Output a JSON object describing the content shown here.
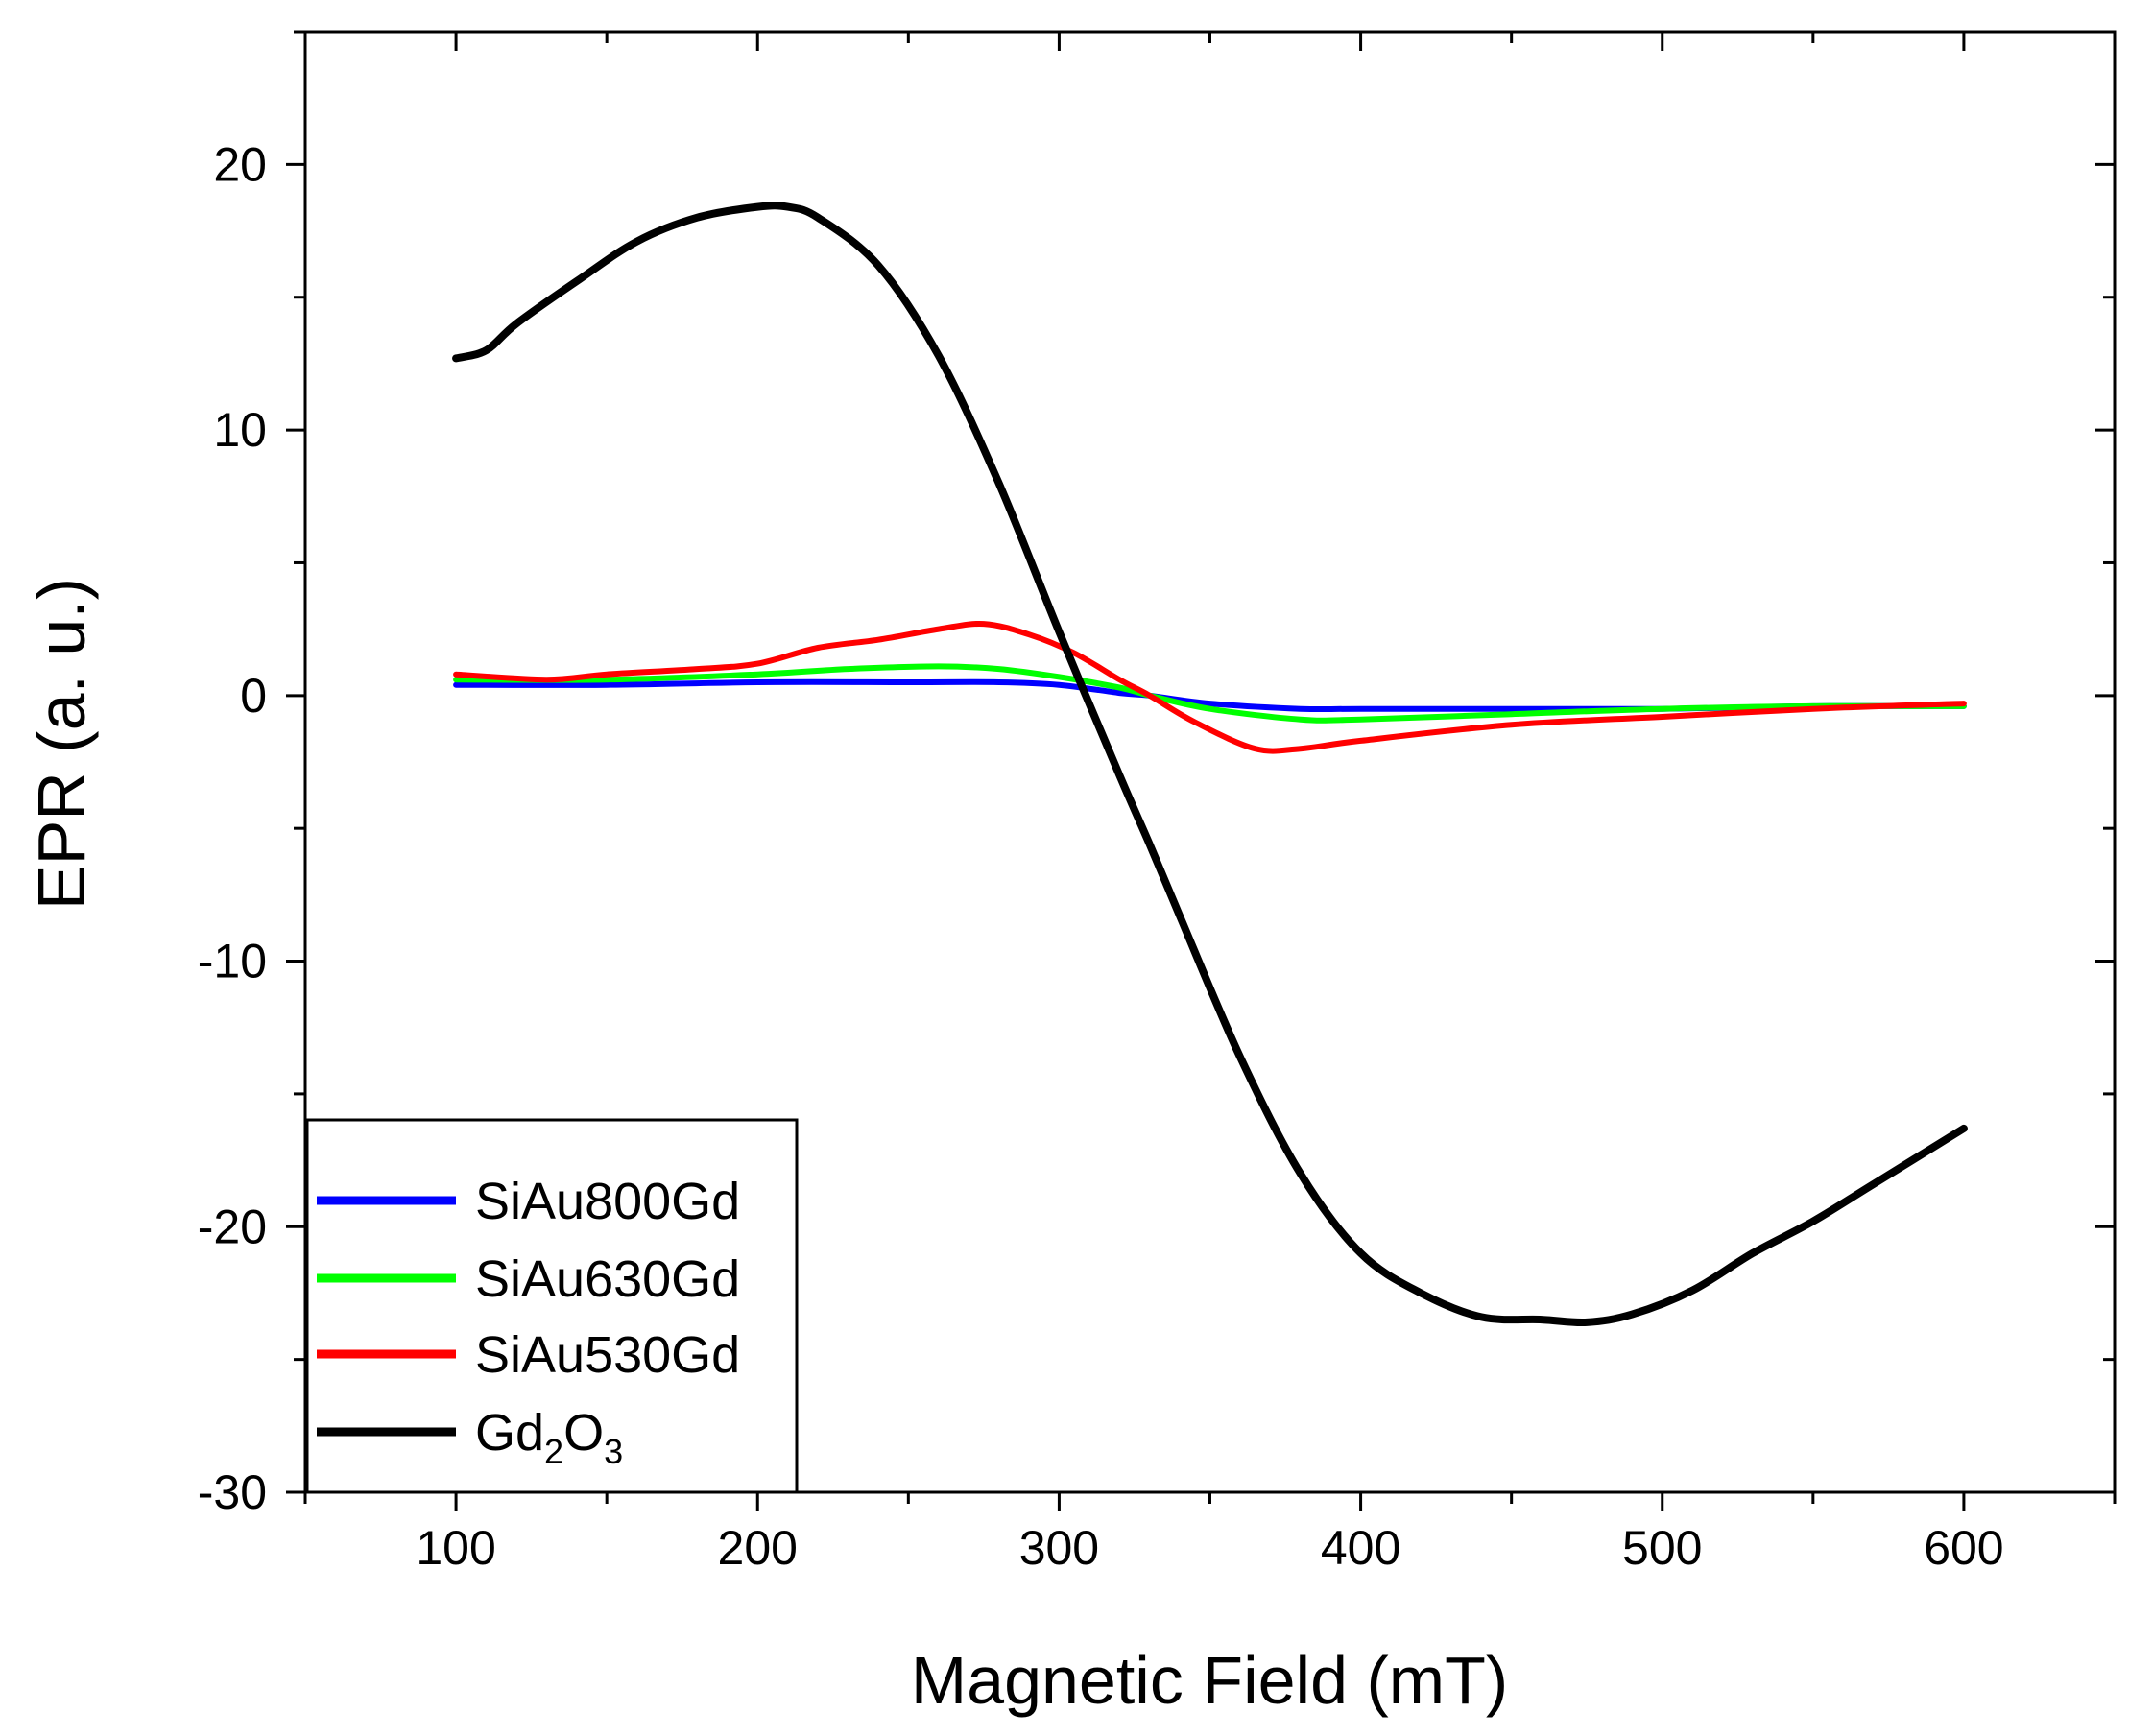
{
  "chart_data": {
    "type": "line",
    "title": "",
    "xlabel": "Magnetic Field (mT)",
    "ylabel": "EPR (a. u.)",
    "xlim": [
      50,
      650
    ],
    "ylim": [
      -30,
      25
    ],
    "xticks": [
      100,
      200,
      300,
      400,
      500,
      600
    ],
    "yticks": [
      -30,
      -20,
      -10,
      0,
      10,
      20
    ],
    "xtick_labels": [
      "100",
      "200",
      "300",
      "400",
      "500",
      "600"
    ],
    "ytick_labels": [
      "-30",
      "-20",
      "-10",
      "0",
      "10",
      "20"
    ],
    "grid": false,
    "legend_position": "bottom-left",
    "series": [
      {
        "name": "SiAu800Gd",
        "color": "#0000ff",
        "x": [
          100,
          150,
          200,
          250,
          280,
          300,
          320,
          330,
          350,
          380,
          400,
          450,
          500,
          550,
          600
        ],
        "y": [
          0.4,
          0.4,
          0.5,
          0.5,
          0.5,
          0.4,
          0.1,
          0.0,
          -0.3,
          -0.5,
          -0.5,
          -0.5,
          -0.5,
          -0.4,
          -0.4
        ]
      },
      {
        "name": "SiAu630Gd",
        "color": "#00ff00",
        "x": [
          100,
          150,
          200,
          230,
          260,
          280,
          300,
          320,
          330,
          350,
          380,
          400,
          450,
          500,
          550,
          600
        ],
        "y": [
          0.6,
          0.6,
          0.8,
          1.0,
          1.1,
          1.0,
          0.7,
          0.3,
          0.0,
          -0.5,
          -0.9,
          -0.9,
          -0.7,
          -0.5,
          -0.4,
          -0.4
        ]
      },
      {
        "name": "SiAu530Gd",
        "color": "#ff0000",
        "x": [
          100,
          130,
          150,
          180,
          200,
          220,
          240,
          260,
          275,
          290,
          305,
          320,
          330,
          345,
          365,
          380,
          400,
          450,
          500,
          550,
          600
        ],
        "y": [
          0.8,
          0.6,
          0.8,
          1.0,
          1.2,
          1.8,
          2.1,
          2.5,
          2.7,
          2.3,
          1.6,
          0.6,
          0.0,
          -1.0,
          -2.0,
          -2.0,
          -1.7,
          -1.1,
          -0.8,
          -0.5,
          -0.3
        ]
      },
      {
        "name": "Gd2O3",
        "color": "#000000",
        "x": [
          100,
          110,
          120,
          140,
          160,
          180,
          200,
          210,
          220,
          240,
          260,
          280,
          300,
          320,
          330,
          340,
          360,
          380,
          400,
          420,
          440,
          460,
          475,
          490,
          510,
          530,
          550,
          570,
          600
        ],
        "y": [
          12.7,
          13.0,
          14.0,
          15.6,
          17.1,
          18.0,
          18.4,
          18.4,
          18.0,
          16.2,
          12.8,
          8.0,
          2.4,
          -3.0,
          -5.6,
          -8.3,
          -13.6,
          -18.0,
          -21.0,
          -22.5,
          -23.4,
          -23.5,
          -23.6,
          -23.3,
          -22.4,
          -21.0,
          -19.8,
          -18.4,
          -16.3
        ]
      }
    ]
  },
  "legend": {
    "items": [
      {
        "label": "SiAu800Gd",
        "color": "#0000ff"
      },
      {
        "label": "SiAu630Gd",
        "color": "#00ff00"
      },
      {
        "label": "SiAu530Gd",
        "color": "#ff0000"
      },
      {
        "label_main": "Gd",
        "sub1": "2",
        "label_mid": "O",
        "sub2": "3",
        "color": "#000000"
      }
    ]
  }
}
